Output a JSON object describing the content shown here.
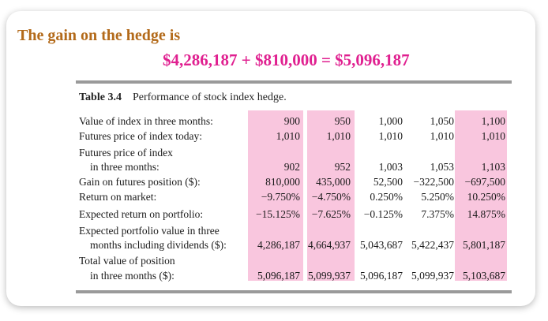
{
  "heading": "The gain on the hedge is",
  "equation": "$4,286,187 + $810,000 = $5,096,187",
  "table": {
    "number": "Table 3.4",
    "title": "Performance of stock index hedge.",
    "rows": [
      {
        "label": "Value of index in three months:",
        "values": [
          "900",
          "950",
          "1,000",
          "1,050",
          "1,100"
        ]
      },
      {
        "label": "Futures price of index today:",
        "values": [
          "1,010",
          "1,010",
          "1,010",
          "1,010",
          "1,010"
        ]
      },
      {
        "label": "Futures price of index",
        "values": []
      },
      {
        "label": "in three months:",
        "values": [
          "902",
          "952",
          "1,003",
          "1,053",
          "1,103"
        ]
      },
      {
        "label": "Gain on futures position ($):",
        "values": [
          "810,000",
          "435,000",
          "52,500",
          "−322,500",
          "−697,500"
        ]
      },
      {
        "label": "Return on market:",
        "values": [
          "−9.750%",
          "−4.750%",
          "0.250%",
          "5.250%",
          "10.250%"
        ]
      },
      {
        "label": "Expected return on portfolio:",
        "values": [
          "−15.125%",
          "−7.625%",
          "−0.125%",
          "7.375%",
          "14.875%"
        ]
      },
      {
        "label": "Expected portfolio value in three",
        "values": []
      },
      {
        "label": "months including dividends ($):",
        "values": [
          "4,286,187",
          "4,664,937",
          "5,043,687",
          "5,422,437",
          "5,801,187"
        ]
      },
      {
        "label": "Total value of position",
        "values": []
      },
      {
        "label": "in three months ($):",
        "values": [
          "5,096,187",
          "5,099,937",
          "5,096,187",
          "5,099,937",
          "5,103,687"
        ]
      }
    ]
  },
  "colors": {
    "heading": "#b36a1a",
    "equation": "#e02090",
    "highlight": "#f9c6de"
  }
}
